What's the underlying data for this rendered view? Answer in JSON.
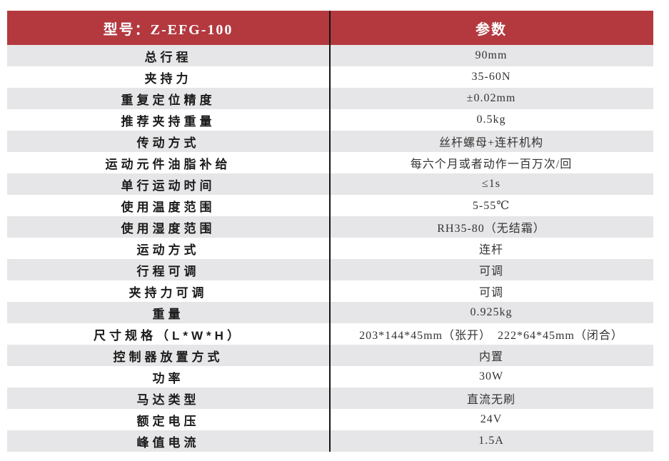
{
  "header": {
    "model": "型号：Z-EFG-100",
    "params": "参数"
  },
  "rows": [
    {
      "label": "总行程",
      "value": "90mm"
    },
    {
      "label": "夹持力",
      "value": "35-60N"
    },
    {
      "label": "重复定位精度",
      "value": "±0.02mm"
    },
    {
      "label": "推荐夹持重量",
      "value": "0.5kg"
    },
    {
      "label": "传动方式",
      "value": "丝杆螺母+连杆机构"
    },
    {
      "label": "运动元件油脂补给",
      "value": "每六个月或者动作一百万次/回"
    },
    {
      "label": "单行运动时间",
      "value": "≤1s"
    },
    {
      "label": "使用温度范围",
      "value": "5-55℃"
    },
    {
      "label": "使用湿度范围",
      "value": "RH35-80（无结霜）"
    },
    {
      "label": "运动方式",
      "value": "连杆"
    },
    {
      "label": "行程可调",
      "value": "可调"
    },
    {
      "label": "夹持力可调",
      "value": "可调"
    },
    {
      "label": "重量",
      "value": "0.925kg"
    },
    {
      "label": "尺寸规格（L*W*H）",
      "value": "203*144*45mm（张开）　222*64*45mm（闭合）"
    },
    {
      "label": "控制器放置方式",
      "value": "内置"
    },
    {
      "label": "功率",
      "value": "30W"
    },
    {
      "label": "马达类型",
      "value": "直流无刷"
    },
    {
      "label": "额定电压",
      "value": "24V"
    },
    {
      "label": "峰值电流",
      "value": "1.5A"
    }
  ],
  "colors": {
    "header_bg": "#B3393F",
    "header_text": "#FFFFFF",
    "stripe_bg": "#E6E6E8",
    "row_bg": "#FFFFFF",
    "divider": "#141414",
    "label_text": "#1B1B1B",
    "value_text": "#333333"
  }
}
